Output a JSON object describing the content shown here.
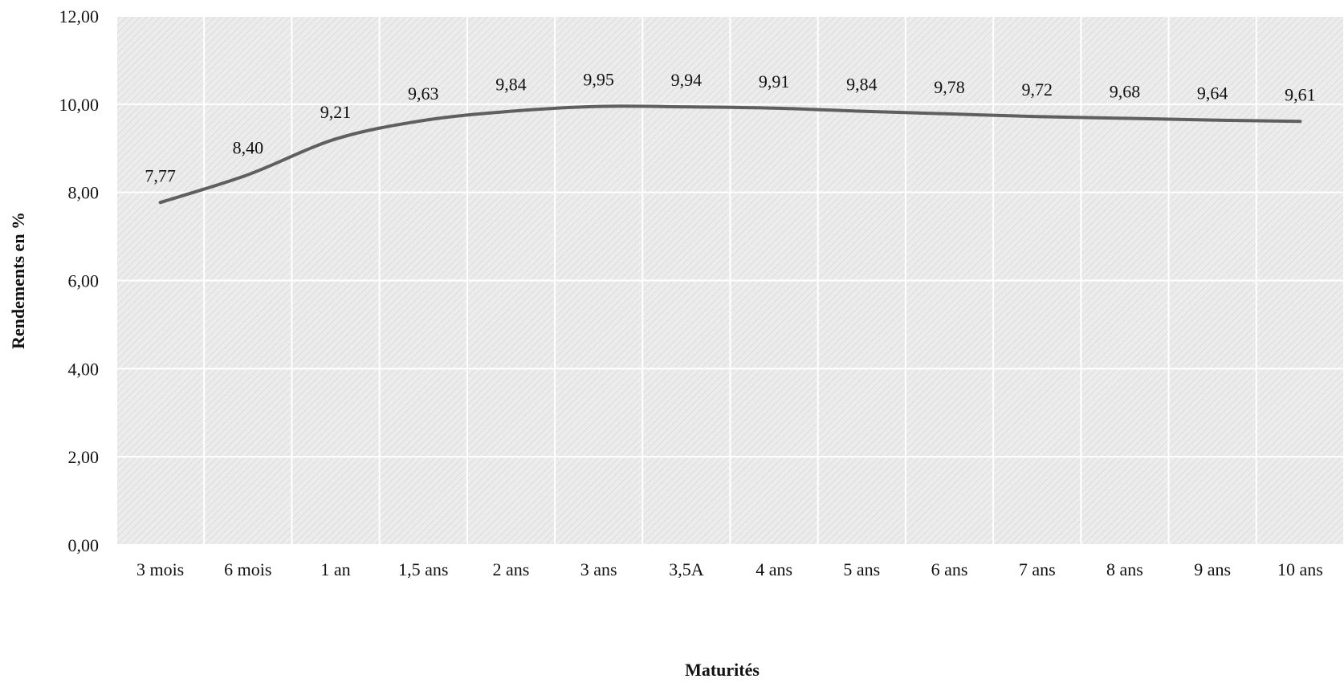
{
  "chart_data": {
    "type": "line",
    "title": "",
    "xlabel": "Maturités",
    "ylabel": "Rendements en %",
    "categories": [
      "3 mois",
      "6 mois",
      "1 an",
      "1,5 ans",
      "2 ans",
      "3 ans",
      "3,5A",
      "4 ans",
      "5 ans",
      "6 ans",
      "7 ans",
      "8 ans",
      "9 ans",
      "10 ans"
    ],
    "series": [
      {
        "values": [
          7.77,
          8.4,
          9.21,
          9.63,
          9.84,
          9.95,
          9.94,
          9.91,
          9.84,
          9.78,
          9.72,
          9.68,
          9.64,
          9.61
        ],
        "data_labels": [
          "7,77",
          "8,40",
          "9,21",
          "9,63",
          "9,84",
          "9,95",
          "9,94",
          "9,91",
          "9,84",
          "9,78",
          "9,72",
          "9,68",
          "9,64",
          "9,61"
        ]
      }
    ],
    "ylim": [
      0,
      12
    ],
    "yticks": [
      0,
      2,
      4,
      6,
      8,
      10,
      12
    ],
    "ytick_labels": [
      "0,00",
      "2,00",
      "4,00",
      "6,00",
      "8,00",
      "10,00",
      "12,00"
    ],
    "grid": true,
    "legend": "none",
    "colors": {
      "line": "#5f5f5f",
      "plot_background": "#ececec",
      "gridline": "#ffffff",
      "hatch": "#d6d6d6"
    }
  }
}
